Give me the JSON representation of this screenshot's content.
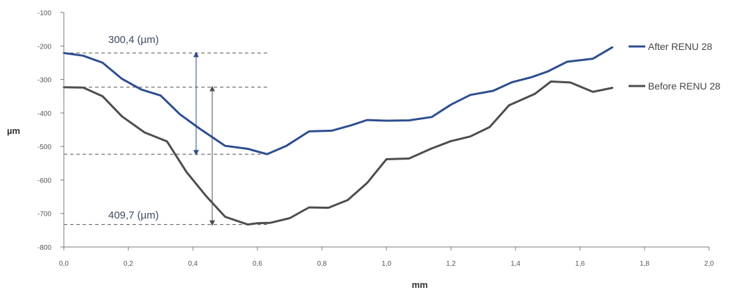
{
  "colors": {
    "after": "#2e4d8f",
    "before": "#4d4d4f",
    "axis": "#777777",
    "guide": "#555555",
    "annotation": "#3a4a64"
  },
  "chart_data": {
    "type": "line",
    "xlabel": "mm",
    "ylabel": "µm",
    "xlim": [
      0,
      2.0
    ],
    "ylim": [
      -800,
      -100
    ],
    "xticks": [
      "0,0",
      "0,2",
      "0,4",
      "0,6",
      "0,8",
      "1,0",
      "1,2",
      "1,4",
      "1,6",
      "1,8",
      "2,0"
    ],
    "yticks": [
      "-100",
      "-200",
      "-300",
      "-400",
      "-500",
      "-600",
      "-700",
      "-800"
    ],
    "grid": false,
    "legend_position": "right",
    "series": [
      {
        "name": "After RENU 28",
        "color_key": "after",
        "points": [
          [
            0.0,
            -221
          ],
          [
            0.06,
            -229
          ],
          [
            0.12,
            -250
          ],
          [
            0.18,
            -298
          ],
          [
            0.24,
            -330
          ],
          [
            0.3,
            -348
          ],
          [
            0.36,
            -404
          ],
          [
            0.42,
            -446
          ],
          [
            0.5,
            -498
          ],
          [
            0.57,
            -507
          ],
          [
            0.63,
            -523
          ],
          [
            0.69,
            -498
          ],
          [
            0.76,
            -455
          ],
          [
            0.83,
            -453
          ],
          [
            0.89,
            -437
          ],
          [
            0.94,
            -421
          ],
          [
            1.0,
            -423
          ],
          [
            1.07,
            -422
          ],
          [
            1.14,
            -412
          ],
          [
            1.2,
            -375
          ],
          [
            1.26,
            -346
          ],
          [
            1.33,
            -334
          ],
          [
            1.39,
            -308
          ],
          [
            1.45,
            -293
          ],
          [
            1.5,
            -276
          ],
          [
            1.56,
            -247
          ],
          [
            1.64,
            -238
          ],
          [
            1.7,
            -204
          ]
        ]
      },
      {
        "name": "Before RENU 28",
        "color_key": "before",
        "points": [
          [
            0.0,
            -323
          ],
          [
            0.06,
            -324
          ],
          [
            0.12,
            -350
          ],
          [
            0.18,
            -410
          ],
          [
            0.25,
            -458
          ],
          [
            0.32,
            -485
          ],
          [
            0.38,
            -576
          ],
          [
            0.44,
            -647
          ],
          [
            0.5,
            -710
          ],
          [
            0.57,
            -733
          ],
          [
            0.6,
            -729
          ],
          [
            0.64,
            -728
          ],
          [
            0.7,
            -714
          ],
          [
            0.76,
            -682
          ],
          [
            0.82,
            -683
          ],
          [
            0.88,
            -660
          ],
          [
            0.94,
            -609
          ],
          [
            1.0,
            -538
          ],
          [
            1.07,
            -536
          ],
          [
            1.14,
            -506
          ],
          [
            1.2,
            -484
          ],
          [
            1.26,
            -470
          ],
          [
            1.32,
            -442
          ],
          [
            1.38,
            -377
          ],
          [
            1.46,
            -343
          ],
          [
            1.51,
            -306
          ],
          [
            1.57,
            -309
          ],
          [
            1.64,
            -337
          ],
          [
            1.7,
            -325
          ]
        ]
      }
    ],
    "annotations": [
      {
        "text": "300,4 (µm)",
        "from": -221,
        "to": -523,
        "arrow_x": 0.41
      },
      {
        "text": "409,7 (µm)",
        "from": -323,
        "to": -733,
        "arrow_x": 0.46
      }
    ]
  }
}
